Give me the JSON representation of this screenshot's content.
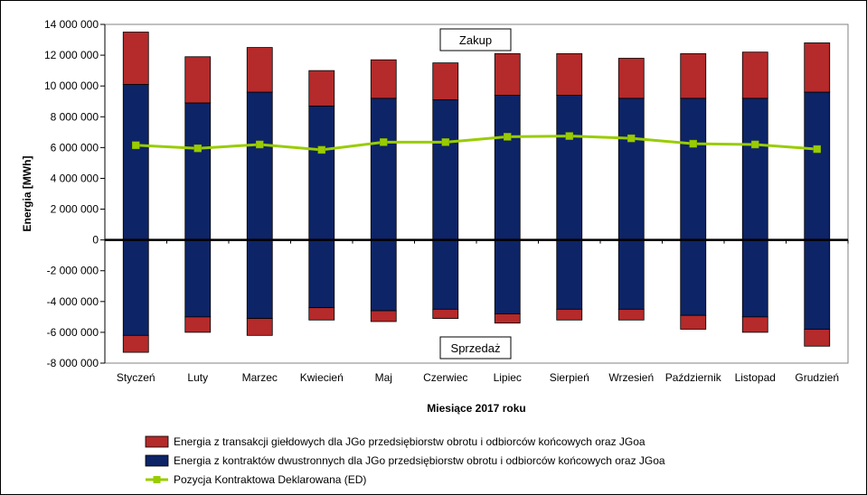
{
  "chart_data": {
    "type": "bar",
    "stacked": true,
    "xlabel": "Miesiące 2017  roku",
    "ylabel": "Energia  [MWh]",
    "ylim": [
      -8000000,
      14000000
    ],
    "ytick_step": 2000000,
    "yticks_labels": [
      "14 000 000",
      "12 000 000",
      "10 000 000",
      "8 000 000",
      "6 000 000",
      "4 000 000",
      "2 000 000",
      "0",
      "-2 000 000",
      "-4 000 000",
      "-6 000 000",
      "-8 000 000"
    ],
    "grid": false,
    "legend_position": "bottom",
    "categories": [
      "Styczeń",
      "Luty",
      "Marzec",
      "Kwiecień",
      "Maj",
      "Czerwiec",
      "Lipiec",
      "Sierpień",
      "Wrzesień",
      "Październik",
      "Listopad",
      "Grudzień"
    ],
    "series": [
      {
        "name": "Energia z kontraktów dwustronnych dla JGo przedsiębiorstw obrotu i odbiorców końcowych oraz JGoa",
        "type": "bar",
        "color": "#0d2467",
        "buy": [
          10100000,
          8900000,
          9600000,
          8700000,
          9200000,
          9100000,
          9400000,
          9400000,
          9200000,
          9200000,
          9200000,
          9600000
        ],
        "sell": [
          -6200000,
          -5000000,
          -5100000,
          -4400000,
          -4600000,
          -4500000,
          -4800000,
          -4500000,
          -4500000,
          -4900000,
          -5000000,
          -5800000
        ]
      },
      {
        "name": "Energia z transakcji giełdowych dla JGo przedsiębiorstw obrotu i odbiorców końcowych oraz JGoa",
        "type": "bar",
        "color": "#b52a2a",
        "buy": [
          3400000,
          3000000,
          2900000,
          2300000,
          2500000,
          2400000,
          2700000,
          2700000,
          2600000,
          2900000,
          3000000,
          3200000
        ],
        "sell": [
          -1100000,
          -1000000,
          -1100000,
          -800000,
          -700000,
          -600000,
          -600000,
          -700000,
          -700000,
          -900000,
          -1000000,
          -1100000
        ]
      },
      {
        "name": "Pozycja Kontraktowa Deklarowana (ED)",
        "type": "line",
        "color": "#99cc00",
        "values": [
          6150000,
          5950000,
          6200000,
          5850000,
          6350000,
          6350000,
          6700000,
          6750000,
          6600000,
          6250000,
          6200000,
          5900000
        ]
      }
    ],
    "annotations": [
      "Zakup",
      "Sprzedaż"
    ]
  }
}
